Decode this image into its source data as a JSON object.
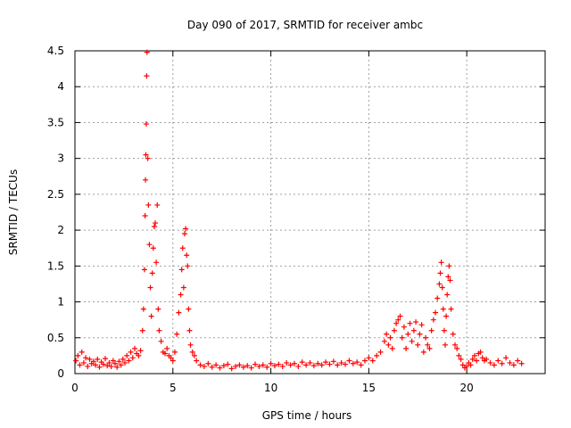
{
  "chart_data": {
    "type": "scatter",
    "title": "Day 090 of 2017, SRMTID for receiver ambc",
    "xlabel": "GPS time / hours",
    "ylabel": "SRMTID / TECUs",
    "xlim": [
      0,
      24
    ],
    "ylim": [
      0,
      4.5
    ],
    "x_ticks": [
      "0",
      "5",
      "10",
      "15",
      "20"
    ],
    "y_ticks": [
      "0",
      "0.5",
      "1",
      "1.5",
      "2",
      "2.5",
      "3",
      "3.5",
      "4",
      "4.5"
    ],
    "grid": true,
    "marker": "+",
    "color": "#ff0000",
    "series": [
      {
        "points": [
          [
            0.05,
            0.18
          ],
          [
            0.15,
            0.25
          ],
          [
            0.25,
            0.12
          ],
          [
            0.35,
            0.3
          ],
          [
            0.45,
            0.15
          ],
          [
            0.55,
            0.22
          ],
          [
            0.65,
            0.1
          ],
          [
            0.75,
            0.2
          ],
          [
            0.85,
            0.14
          ],
          [
            0.95,
            0.17
          ],
          [
            1.05,
            0.12
          ],
          [
            1.15,
            0.2
          ],
          [
            1.25,
            0.09
          ],
          [
            1.35,
            0.16
          ],
          [
            1.45,
            0.13
          ],
          [
            1.55,
            0.21
          ],
          [
            1.65,
            0.11
          ],
          [
            1.75,
            0.15
          ],
          [
            1.85,
            0.1
          ],
          [
            1.95,
            0.18
          ],
          [
            2.05,
            0.14
          ],
          [
            2.15,
            0.09
          ],
          [
            2.25,
            0.17
          ],
          [
            2.35,
            0.12
          ],
          [
            2.45,
            0.2
          ],
          [
            2.55,
            0.15
          ],
          [
            2.65,
            0.25
          ],
          [
            2.75,
            0.18
          ],
          [
            2.85,
            0.3
          ],
          [
            2.95,
            0.22
          ],
          [
            3.05,
            0.35
          ],
          [
            3.15,
            0.28
          ],
          [
            3.25,
            0.25
          ],
          [
            3.35,
            0.32
          ],
          [
            3.45,
            0.6
          ],
          [
            3.5,
            0.9
          ],
          [
            3.55,
            1.45
          ],
          [
            3.58,
            2.2
          ],
          [
            3.6,
            2.7
          ],
          [
            3.62,
            3.05
          ],
          [
            3.64,
            3.48
          ],
          [
            3.66,
            4.15
          ],
          [
            3.68,
            4.48
          ],
          [
            3.72,
            3.0
          ],
          [
            3.75,
            2.35
          ],
          [
            3.8,
            1.8
          ],
          [
            3.85,
            1.2
          ],
          [
            3.9,
            0.8
          ],
          [
            3.95,
            1.4
          ],
          [
            4.0,
            1.75
          ],
          [
            4.05,
            2.05
          ],
          [
            4.1,
            2.1
          ],
          [
            4.15,
            1.55
          ],
          [
            4.2,
            2.35
          ],
          [
            4.25,
            0.9
          ],
          [
            4.3,
            0.6
          ],
          [
            4.4,
            0.45
          ],
          [
            4.5,
            0.3
          ],
          [
            4.6,
            0.28
          ],
          [
            4.7,
            0.35
          ],
          [
            4.8,
            0.25
          ],
          [
            4.9,
            0.22
          ],
          [
            5.0,
            0.18
          ],
          [
            5.1,
            0.3
          ],
          [
            5.2,
            0.55
          ],
          [
            5.3,
            0.85
          ],
          [
            5.4,
            1.1
          ],
          [
            5.45,
            1.45
          ],
          [
            5.5,
            1.75
          ],
          [
            5.55,
            1.2
          ],
          [
            5.6,
            1.95
          ],
          [
            5.65,
            2.02
          ],
          [
            5.7,
            1.65
          ],
          [
            5.75,
            1.5
          ],
          [
            5.8,
            0.9
          ],
          [
            5.85,
            0.6
          ],
          [
            5.9,
            0.4
          ],
          [
            6.0,
            0.3
          ],
          [
            6.1,
            0.25
          ],
          [
            6.2,
            0.18
          ],
          [
            6.4,
            0.12
          ],
          [
            6.6,
            0.1
          ],
          [
            6.8,
            0.14
          ],
          [
            7.0,
            0.09
          ],
          [
            7.2,
            0.12
          ],
          [
            7.4,
            0.08
          ],
          [
            7.6,
            0.11
          ],
          [
            7.8,
            0.13
          ],
          [
            8.0,
            0.07
          ],
          [
            8.2,
            0.1
          ],
          [
            8.4,
            0.12
          ],
          [
            8.6,
            0.09
          ],
          [
            8.8,
            0.11
          ],
          [
            9.0,
            0.08
          ],
          [
            9.2,
            0.13
          ],
          [
            9.4,
            0.1
          ],
          [
            9.6,
            0.12
          ],
          [
            9.8,
            0.09
          ],
          [
            10.0,
            0.14
          ],
          [
            10.2,
            0.11
          ],
          [
            10.4,
            0.13
          ],
          [
            10.6,
            0.1
          ],
          [
            10.8,
            0.15
          ],
          [
            11.0,
            0.12
          ],
          [
            11.2,
            0.14
          ],
          [
            11.4,
            0.1
          ],
          [
            11.6,
            0.16
          ],
          [
            11.8,
            0.12
          ],
          [
            12.0,
            0.15
          ],
          [
            12.2,
            0.11
          ],
          [
            12.4,
            0.14
          ],
          [
            12.6,
            0.12
          ],
          [
            12.8,
            0.16
          ],
          [
            13.0,
            0.13
          ],
          [
            13.2,
            0.17
          ],
          [
            13.4,
            0.12
          ],
          [
            13.6,
            0.15
          ],
          [
            13.8,
            0.13
          ],
          [
            14.0,
            0.18
          ],
          [
            14.2,
            0.14
          ],
          [
            14.4,
            0.16
          ],
          [
            14.6,
            0.12
          ],
          [
            14.8,
            0.18
          ],
          [
            15.0,
            0.22
          ],
          [
            15.2,
            0.18
          ],
          [
            15.4,
            0.25
          ],
          [
            15.6,
            0.3
          ],
          [
            15.8,
            0.45
          ],
          [
            15.9,
            0.55
          ],
          [
            16.0,
            0.4
          ],
          [
            16.1,
            0.5
          ],
          [
            16.2,
            0.35
          ],
          [
            16.3,
            0.6
          ],
          [
            16.4,
            0.7
          ],
          [
            16.5,
            0.75
          ],
          [
            16.6,
            0.8
          ],
          [
            16.7,
            0.5
          ],
          [
            16.8,
            0.65
          ],
          [
            16.9,
            0.35
          ],
          [
            17.0,
            0.55
          ],
          [
            17.1,
            0.7
          ],
          [
            17.2,
            0.45
          ],
          [
            17.3,
            0.6
          ],
          [
            17.4,
            0.72
          ],
          [
            17.5,
            0.4
          ],
          [
            17.6,
            0.55
          ],
          [
            17.7,
            0.68
          ],
          [
            17.8,
            0.3
          ],
          [
            17.9,
            0.5
          ],
          [
            18.0,
            0.4
          ],
          [
            18.1,
            0.35
          ],
          [
            18.2,
            0.6
          ],
          [
            18.3,
            0.75
          ],
          [
            18.4,
            0.85
          ],
          [
            18.5,
            1.05
          ],
          [
            18.6,
            1.25
          ],
          [
            18.65,
            1.4
          ],
          [
            18.7,
            1.55
          ],
          [
            18.75,
            1.2
          ],
          [
            18.8,
            0.9
          ],
          [
            18.85,
            0.6
          ],
          [
            18.9,
            0.4
          ],
          [
            18.95,
            0.8
          ],
          [
            19.0,
            1.1
          ],
          [
            19.05,
            1.35
          ],
          [
            19.1,
            1.5
          ],
          [
            19.15,
            1.3
          ],
          [
            19.2,
            0.9
          ],
          [
            19.3,
            0.55
          ],
          [
            19.4,
            0.4
          ],
          [
            19.5,
            0.35
          ],
          [
            19.6,
            0.25
          ],
          [
            19.7,
            0.2
          ],
          [
            19.8,
            0.12
          ],
          [
            19.9,
            0.08
          ],
          [
            20.0,
            0.1
          ],
          [
            20.1,
            0.15
          ],
          [
            20.2,
            0.12
          ],
          [
            20.3,
            0.2
          ],
          [
            20.4,
            0.25
          ],
          [
            20.5,
            0.18
          ],
          [
            20.6,
            0.28
          ],
          [
            20.7,
            0.3
          ],
          [
            20.8,
            0.22
          ],
          [
            20.9,
            0.18
          ],
          [
            21.0,
            0.2
          ],
          [
            21.2,
            0.15
          ],
          [
            21.4,
            0.12
          ],
          [
            21.6,
            0.18
          ],
          [
            21.8,
            0.14
          ],
          [
            22.0,
            0.22
          ],
          [
            22.2,
            0.15
          ],
          [
            22.4,
            0.12
          ],
          [
            22.6,
            0.18
          ],
          [
            22.8,
            0.14
          ]
        ]
      }
    ]
  }
}
